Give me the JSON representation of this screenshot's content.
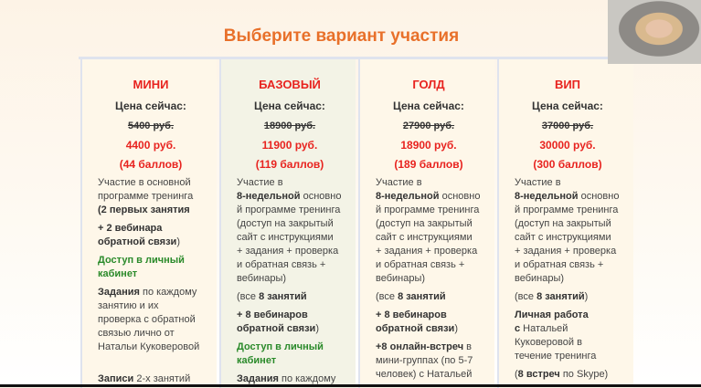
{
  "title": "Выберите вариант участия",
  "webcam": {
    "icon": "presenter-video"
  },
  "colors": {
    "title": "#e8702a",
    "price": "#e8231f",
    "green": "#2a8a2a"
  },
  "cards": [
    {
      "name": "МИНИ",
      "price_label": "Цена сейчас:",
      "old_price": "5400 руб.",
      "new_price": "4400 руб.",
      "points": "(44 баллов)",
      "paras": [
        [
          [
            [
              "Участие в основной",
              "n"
            ]
          ],
          [
            [
              "программе тренинга",
              "n"
            ]
          ],
          [
            [
              "(2 первых занятия",
              "b"
            ]
          ]
        ],
        [
          [
            [
              "+ 2 вебинара",
              "b"
            ]
          ],
          [
            [
              "обратной связи",
              "b"
            ],
            [
              ")",
              "n"
            ]
          ]
        ],
        [
          [
            [
              "Доступ в личный",
              "g"
            ]
          ],
          [
            [
              "кабинет",
              "g"
            ]
          ]
        ],
        [
          [
            [
              "Задания",
              "b"
            ],
            [
              " по каждому",
              "n"
            ]
          ],
          [
            [
              "занятию и их",
              "n"
            ]
          ],
          [
            [
              "проверка с обратной",
              "n"
            ]
          ],
          [
            [
              "связью лично от",
              "n"
            ]
          ],
          [
            [
              "Натальи Куковеровой",
              "n"
            ]
          ],
          [
            [
              "",
              "n"
            ]
          ]
        ],
        [
          [
            [
              "Записи",
              "b"
            ],
            [
              " 2-х занятий",
              "n"
            ]
          ]
        ]
      ]
    },
    {
      "name": "БАЗОВЫЙ",
      "price_label": "Цена сейчас:",
      "old_price": "18900 руб.",
      "new_price": "11900 руб.",
      "points": "(119 баллов)",
      "paras": [
        [
          [
            [
              "Участие в",
              "n"
            ]
          ],
          [
            [
              "8-недельной",
              "b"
            ],
            [
              " основно",
              "n"
            ]
          ],
          [
            [
              "й программе тренинга",
              "n"
            ]
          ],
          [
            [
              "(доступ на закрытый",
              "n"
            ]
          ],
          [
            [
              "сайт с инструкциями",
              "n"
            ]
          ],
          [
            [
              "+ задания + проверка",
              "n"
            ]
          ],
          [
            [
              "и обратная связь +",
              "n"
            ]
          ],
          [
            [
              "вебинары)",
              "n"
            ]
          ]
        ],
        [
          [
            [
              " (все ",
              "n"
            ],
            [
              "8 занятий",
              "b"
            ]
          ]
        ],
        [
          [
            [
              "+ 8 вебинаров",
              "b"
            ]
          ],
          [
            [
              "обратной связи",
              "b"
            ],
            [
              ")",
              "n"
            ]
          ]
        ],
        [
          [
            [
              "Доступ в личный",
              "g"
            ]
          ],
          [
            [
              "кабинет",
              "g"
            ]
          ]
        ],
        [
          [
            [
              "Задания",
              "b"
            ],
            [
              " по каждому",
              "n"
            ]
          ]
        ]
      ]
    },
    {
      "name": "ГОЛД",
      "price_label": "Цена сейчас:",
      "old_price": "27900 руб.",
      "new_price": "18900 руб.",
      "points": "(189 баллов)",
      "paras": [
        [
          [
            [
              "Участие в",
              "n"
            ]
          ],
          [
            [
              "8-недельной",
              "b"
            ],
            [
              " основно",
              "n"
            ]
          ],
          [
            [
              "й программе тренинга",
              "n"
            ]
          ],
          [
            [
              "(доступ на закрытый",
              "n"
            ]
          ],
          [
            [
              "сайт с инструкциями",
              "n"
            ]
          ],
          [
            [
              "+ задания + проверка",
              "n"
            ]
          ],
          [
            [
              "и обратная связь +",
              "n"
            ]
          ],
          [
            [
              "вебинары)",
              "n"
            ]
          ]
        ],
        [
          [
            [
              " (все ",
              "n"
            ],
            [
              "8 занятий",
              "b"
            ]
          ]
        ],
        [
          [
            [
              "+ 8 вебинаров",
              "b"
            ]
          ],
          [
            [
              "обратной связи",
              "b"
            ],
            [
              ")",
              "n"
            ]
          ]
        ],
        [
          [
            [
              "+8 онлайн-встреч",
              "b"
            ],
            [
              " в",
              "n"
            ]
          ],
          [
            [
              "мини-группах (по 5-7",
              "n"
            ]
          ],
          [
            [
              "человек) с Натальей",
              "n"
            ]
          ]
        ]
      ]
    },
    {
      "name": "ВИП",
      "price_label": "Цена сейчас:",
      "old_price": "37000 руб.",
      "new_price": "30000 руб.",
      "points": "(300 баллов)",
      "paras": [
        [
          [
            [
              "Участие в",
              "n"
            ]
          ],
          [
            [
              "8-недельной",
              "b"
            ],
            [
              " основно",
              "n"
            ]
          ],
          [
            [
              "й программе тренинга",
              "n"
            ]
          ],
          [
            [
              "(доступ на закрытый",
              "n"
            ]
          ],
          [
            [
              "сайт с инструкциями",
              "n"
            ]
          ],
          [
            [
              "+ задания + проверка",
              "n"
            ]
          ],
          [
            [
              "и обратная связь +",
              "n"
            ]
          ],
          [
            [
              "вебинары)",
              "n"
            ]
          ]
        ],
        [
          [
            [
              " (все ",
              "n"
            ],
            [
              "8 занятий",
              "b"
            ],
            [
              ")",
              "n"
            ]
          ]
        ],
        [
          [
            [
              "Личная работа",
              "b"
            ]
          ],
          [
            [
              "с",
              "b"
            ],
            [
              " Натальей",
              "n"
            ]
          ],
          [
            [
              "Куковеровой в",
              "n"
            ]
          ],
          [
            [
              "течение тренинга",
              "n"
            ]
          ]
        ],
        [
          [
            [
              " (",
              "n"
            ],
            [
              "8 встреч",
              "b"
            ],
            [
              " по Skype)",
              "n"
            ]
          ]
        ]
      ]
    }
  ]
}
